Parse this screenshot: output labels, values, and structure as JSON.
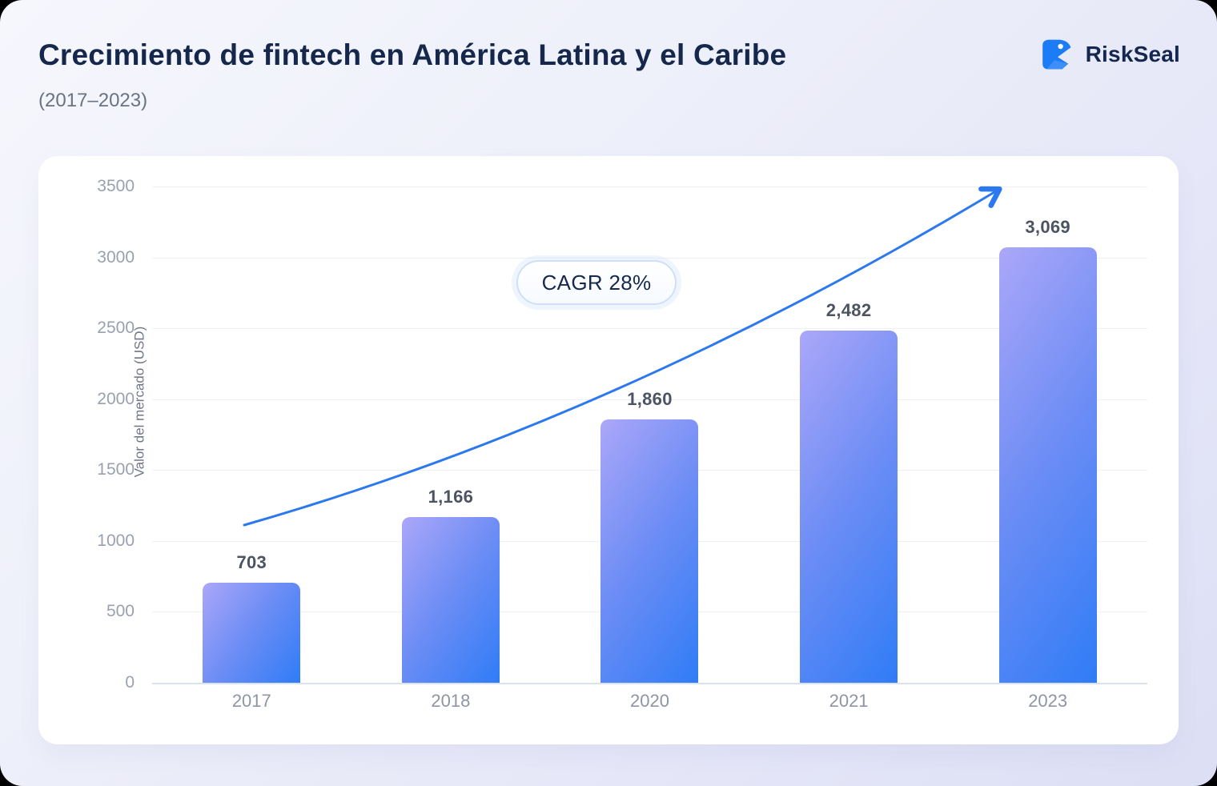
{
  "header": {
    "brand": "RiskSeal"
  },
  "chart_data": {
    "type": "bar",
    "title": "Crecimiento de fintech en América Latina y el Caribe",
    "subtitle": "(2017–2023)",
    "categories": [
      "2017",
      "2018",
      "2020",
      "2021",
      "2023"
    ],
    "values": [
      703,
      1166,
      1860,
      2482,
      3069
    ],
    "value_labels": [
      "703",
      "1,166",
      "1,860",
      "2,482",
      "3,069"
    ],
    "ylabel": "Valor del mercado (USD)",
    "xlabel": "",
    "ylim": [
      0,
      3500
    ],
    "yticks": [
      "3500",
      "3000",
      "2500",
      "2000",
      "1500",
      "1000",
      "500",
      "0"
    ],
    "grid": "horizontal",
    "annotation": "CAGR 28%",
    "trend_arrow": "up",
    "colors": {
      "bar_gradient_start": "#aba7f8",
      "bar_gradient_end": "#2f7cf6",
      "arrow_blue": "#2c79ef",
      "title_navy": "#15284b",
      "brand_blue": "#1b7cf5",
      "card_bg": "#ffffff",
      "page_bg": "#e9ebf9"
    }
  }
}
